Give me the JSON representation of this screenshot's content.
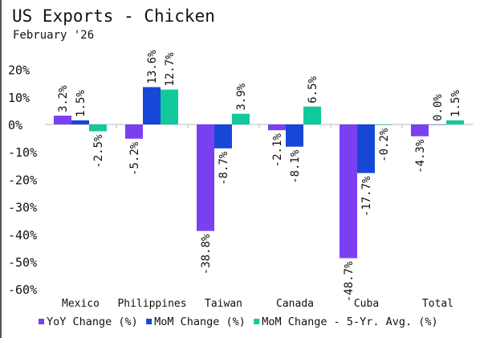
{
  "chart_data": {
    "type": "bar",
    "title": "US Exports - Chicken",
    "subtitle": "February '26",
    "xlabel": "",
    "ylabel": "",
    "ylim": [
      -60,
      20
    ],
    "yticks": [
      "20%",
      "10%",
      "0%",
      "-10%",
      "-20%",
      "-30%",
      "-40%",
      "-50%",
      "-60%"
    ],
    "ytick_values": [
      20,
      10,
      0,
      -10,
      -20,
      -30,
      -40,
      -50,
      -60
    ],
    "grid": false,
    "legend_position": "bottom",
    "categories": [
      "Mexico",
      "Philippines",
      "Taiwan",
      "Canada",
      "Cuba",
      "Total"
    ],
    "series": [
      {
        "name": "YoY Change (%)",
        "color": "#7b3ff2",
        "values": [
          3.2,
          -5.2,
          -38.8,
          -2.1,
          -48.7,
          -4.3
        ],
        "labels": [
          "3.2%",
          "-5.2%",
          "-38.8%",
          "-2.1%",
          "-48.7%",
          "-4.3%"
        ]
      },
      {
        "name": "MoM Change (%)",
        "color": "#1747d6",
        "values": [
          1.5,
          13.6,
          -8.7,
          -8.1,
          -17.7,
          0.0
        ],
        "labels": [
          "1.5%",
          "13.6%",
          "-8.7%",
          "-8.1%",
          "-17.7%",
          "0.0%"
        ]
      },
      {
        "name": "MoM Change - 5-Yr. Avg. (%)",
        "color": "#12c99b",
        "values": [
          -2.5,
          12.7,
          3.9,
          6.5,
          -0.2,
          1.5
        ],
        "labels": [
          "-2.5%",
          "12.7%",
          "3.9%",
          "6.5%",
          "-0.2%",
          "1.5%"
        ]
      }
    ]
  }
}
